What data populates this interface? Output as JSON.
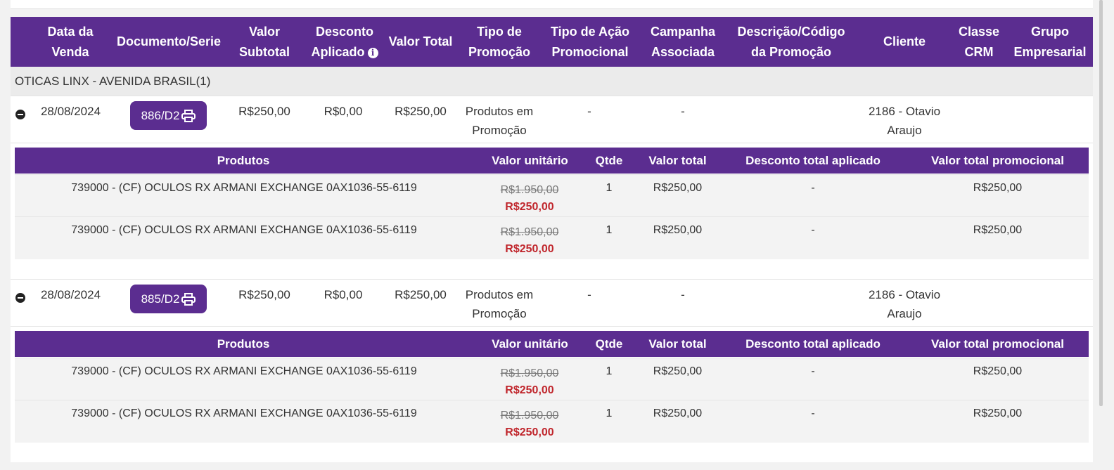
{
  "header": {
    "columns": [
      {
        "label": "Data da\nVenda"
      },
      {
        "label": "Documento/Serie"
      },
      {
        "label": "Valor\nSubtotal"
      },
      {
        "label": "Desconto\nAplicado"
      },
      {
        "label": "Valor Total"
      },
      {
        "label": "Tipo de\nPromoção"
      },
      {
        "label": "Tipo de Ação\nPromocional"
      },
      {
        "label": "Campanha\nAssociada"
      },
      {
        "label": "Descrição/Código\nda Promoção"
      },
      {
        "label": "Cliente"
      },
      {
        "label": "Classe\nCRM"
      },
      {
        "label": "Grupo\nEmpresarial"
      }
    ]
  },
  "group": {
    "label": "OTICAS LINX - AVENIDA BRASIL(1)"
  },
  "sub_header": {
    "produtos": "Produtos",
    "valor_unitario": "Valor unitário",
    "qtde": "Qtde",
    "valor_total": "Valor total",
    "desconto_total": "Desconto total aplicado",
    "valor_promocional": "Valor total promocional"
  },
  "sales": [
    {
      "date": "28/08/2024",
      "document": "886/D2",
      "subtotal": "R$250,00",
      "desconto": "R$0,00",
      "total": "R$250,00",
      "tipo_promocao": "Produtos em\nPromoção",
      "tipo_acao": "-",
      "campanha": "-",
      "cliente": "2186 - Otavio\nAraujo",
      "products": [
        {
          "name": "739000 - (CF) OCULOS RX ARMANI EXCHANGE 0AX1036-55-6119",
          "old_price": "R$1.950,00",
          "new_price": "R$250,00",
          "qtde": "1",
          "valor_total": "R$250,00",
          "desconto": "-",
          "valor_promocional": "R$250,00"
        },
        {
          "name": "739000 - (CF) OCULOS RX ARMANI EXCHANGE 0AX1036-55-6119",
          "old_price": "R$1.950,00",
          "new_price": "R$250,00",
          "qtde": "1",
          "valor_total": "R$250,00",
          "desconto": "-",
          "valor_promocional": "R$250,00"
        }
      ]
    },
    {
      "date": "28/08/2024",
      "document": "885/D2",
      "subtotal": "R$250,00",
      "desconto": "R$0,00",
      "total": "R$250,00",
      "tipo_promocao": "Produtos em\nPromoção",
      "tipo_acao": "-",
      "campanha": "-",
      "cliente": "2186 - Otavio\nAraujo",
      "products": [
        {
          "name": "739000 - (CF) OCULOS RX ARMANI EXCHANGE 0AX1036-55-6119",
          "old_price": "R$1.950,00",
          "new_price": "R$250,00",
          "qtde": "1",
          "valor_total": "R$250,00",
          "desconto": "-",
          "valor_promocional": "R$250,00"
        },
        {
          "name": "739000 - (CF) OCULOS RX ARMANI EXCHANGE 0AX1036-55-6119",
          "old_price": "R$1.950,00",
          "new_price": "R$250,00",
          "qtde": "1",
          "valor_total": "R$250,00",
          "desconto": "-",
          "valor_promocional": "R$250,00"
        }
      ]
    }
  ],
  "icons": {
    "info": "info-icon",
    "print": "printer-icon",
    "collapse": "minus-circle-icon"
  },
  "colors": {
    "header_bg": "#5b2d90",
    "promo_price": "#c0262c"
  }
}
